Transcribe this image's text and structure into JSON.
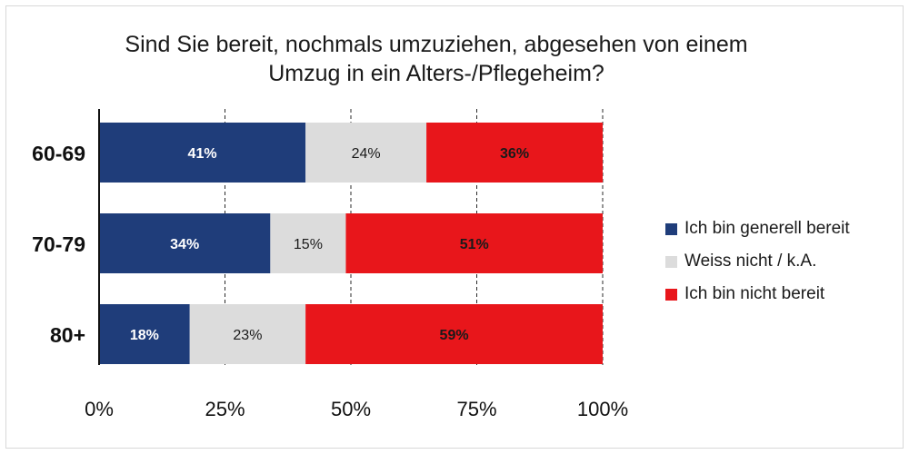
{
  "chart_data": {
    "type": "bar",
    "orientation": "horizontal",
    "stacked": true,
    "title": "Sind Sie bereit, nochmals umzuziehen, abgesehen von einem Umzug in ein Alters-/Pflegeheim?",
    "title_lines": [
      "Sind Sie bereit, nochmals umzuziehen, abgesehen von einem",
      "Umzug in ein Alters-/Pflegeheim?"
    ],
    "categories": [
      "60-69",
      "70-79",
      "80+"
    ],
    "series": [
      {
        "name": "Ich bin generell bereit",
        "values": [
          41,
          34,
          18
        ],
        "color": "#1f3d7a",
        "label_color": "#ffffff"
      },
      {
        "name": "Weiss nicht / k.A.",
        "values": [
          24,
          15,
          23
        ],
        "color": "#dcdcdc",
        "label_color": "#1a1a1a"
      },
      {
        "name": "Ich bin nicht bereit",
        "values": [
          36,
          51,
          59
        ],
        "color": "#e8161b",
        "label_color": "#1a1a1a"
      }
    ],
    "data_labels": [
      [
        "41%",
        "34%",
        "18%"
      ],
      [
        "24%",
        "15%",
        "23%"
      ],
      [
        "36%",
        "51%",
        "59%"
      ]
    ],
    "xlim": [
      0,
      100
    ],
    "x_ticks": [
      0,
      25,
      50,
      75,
      100
    ],
    "x_tick_labels": [
      "0%",
      "25%",
      "50%",
      "75%",
      "100%"
    ],
    "grid": "vertical dashed",
    "legend_position": "right"
  }
}
